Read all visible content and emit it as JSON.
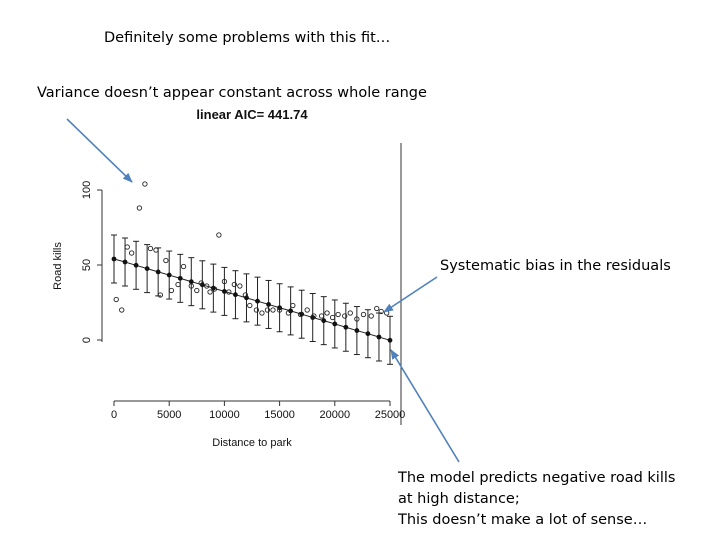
{
  "annotations": {
    "fit_problems": "Definitely some problems with this fit…",
    "variance": "Variance doesn’t appear constant across whole range",
    "bias": "Systematic bias in the residuals",
    "negative_line1": "The model predicts negative road kills",
    "negative_line2": "at high distance;",
    "negative_line3": "This doesn’t make a lot of sense…"
  },
  "colors": {
    "arrow": "#4f81bd",
    "axis": "#333333",
    "points": "#222222"
  },
  "chart_data": {
    "type": "scatter",
    "title": "linear AIC= 441.74",
    "xlabel": "Distance to park",
    "ylabel": "Road kills",
    "xlim": [
      0,
      25000
    ],
    "ylim": [
      -20,
      110
    ],
    "xticks": [
      0,
      5000,
      10000,
      15000,
      20000,
      25000
    ],
    "xtick_labels": [
      "0",
      "5000",
      "10000",
      "15000",
      "20000",
      "25000"
    ],
    "yticks": [
      0,
      50,
      100
    ],
    "ytick_labels": [
      "0",
      "50",
      "100"
    ],
    "observed": [
      {
        "x": 200,
        "y": 27
      },
      {
        "x": 700,
        "y": 20
      },
      {
        "x": 1200,
        "y": 62
      },
      {
        "x": 1600,
        "y": 58
      },
      {
        "x": 2300,
        "y": 88
      },
      {
        "x": 2800,
        "y": 104
      },
      {
        "x": 3300,
        "y": 61
      },
      {
        "x": 3800,
        "y": 60
      },
      {
        "x": 4200,
        "y": 30
      },
      {
        "x": 4700,
        "y": 53
      },
      {
        "x": 5200,
        "y": 33
      },
      {
        "x": 5800,
        "y": 37
      },
      {
        "x": 6300,
        "y": 49
      },
      {
        "x": 7000,
        "y": 36
      },
      {
        "x": 7500,
        "y": 33
      },
      {
        "x": 7900,
        "y": 38
      },
      {
        "x": 8400,
        "y": 36
      },
      {
        "x": 8700,
        "y": 32
      },
      {
        "x": 9100,
        "y": 34
      },
      {
        "x": 9500,
        "y": 70
      },
      {
        "x": 10000,
        "y": 39
      },
      {
        "x": 10400,
        "y": 32
      },
      {
        "x": 10900,
        "y": 37
      },
      {
        "x": 11400,
        "y": 36
      },
      {
        "x": 11900,
        "y": 30
      },
      {
        "x": 12300,
        "y": 23
      },
      {
        "x": 12900,
        "y": 20
      },
      {
        "x": 13400,
        "y": 18
      },
      {
        "x": 13900,
        "y": 20
      },
      {
        "x": 14400,
        "y": 20
      },
      {
        "x": 15000,
        "y": 20
      },
      {
        "x": 15800,
        "y": 18
      },
      {
        "x": 16200,
        "y": 23
      },
      {
        "x": 16900,
        "y": 17
      },
      {
        "x": 17500,
        "y": 20
      },
      {
        "x": 18100,
        "y": 16
      },
      {
        "x": 18800,
        "y": 16
      },
      {
        "x": 19300,
        "y": 18
      },
      {
        "x": 19800,
        "y": 15
      },
      {
        "x": 20300,
        "y": 17
      },
      {
        "x": 20900,
        "y": 16
      },
      {
        "x": 21400,
        "y": 18
      },
      {
        "x": 22000,
        "y": 14
      },
      {
        "x": 22600,
        "y": 17
      },
      {
        "x": 23300,
        "y": 16
      },
      {
        "x": 23800,
        "y": 21
      },
      {
        "x": 24200,
        "y": 19
      },
      {
        "x": 24700,
        "y": 18
      }
    ],
    "fitted": [
      {
        "x": 0,
        "y": 54
      },
      {
        "x": 1000,
        "y": 52
      },
      {
        "x": 2000,
        "y": 49.8
      },
      {
        "x": 3000,
        "y": 47.6
      },
      {
        "x": 4000,
        "y": 45.4
      },
      {
        "x": 5000,
        "y": 43.3
      },
      {
        "x": 6000,
        "y": 41.1
      },
      {
        "x": 7000,
        "y": 38.9
      },
      {
        "x": 8000,
        "y": 36.8
      },
      {
        "x": 9000,
        "y": 34.6
      },
      {
        "x": 10000,
        "y": 32.4
      },
      {
        "x": 11000,
        "y": 30.2
      },
      {
        "x": 12000,
        "y": 28.1
      },
      {
        "x": 13000,
        "y": 25.9
      },
      {
        "x": 14000,
        "y": 23.7
      },
      {
        "x": 15000,
        "y": 21.5
      },
      {
        "x": 16000,
        "y": 19.4
      },
      {
        "x": 17000,
        "y": 17.2
      },
      {
        "x": 18000,
        "y": 15
      },
      {
        "x": 19000,
        "y": 12.9
      },
      {
        "x": 20000,
        "y": 10.7
      },
      {
        "x": 21000,
        "y": 8.5
      },
      {
        "x": 22000,
        "y": 6.3
      },
      {
        "x": 23000,
        "y": 4.2
      },
      {
        "x": 24000,
        "y": 2
      },
      {
        "x": 25000,
        "y": -0.2
      }
    ],
    "interval_halfwidth": 16
  }
}
